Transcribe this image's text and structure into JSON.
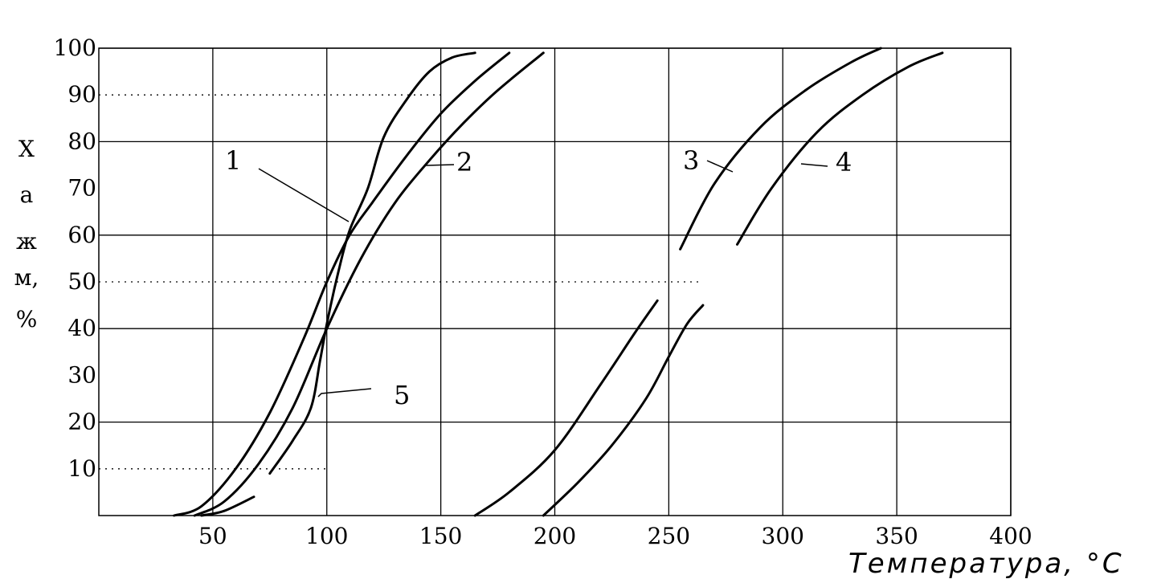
{
  "chart_data": {
    "type": "line",
    "title": "",
    "xlabel": "Температура, °C",
    "ylabel": [
      "Х",
      "а",
      "ж",
      "м,",
      "%"
    ],
    "xlim": [
      0,
      400
    ],
    "ylim": [
      0,
      100
    ],
    "x_ticks": [
      50,
      100,
      150,
      200,
      250,
      300,
      350,
      400
    ],
    "y_ticks": [
      10,
      20,
      30,
      40,
      50,
      60,
      70,
      80,
      90,
      100
    ],
    "y_tick_labels": [
      "10",
      "20",
      "30",
      "40",
      "50",
      "60",
      "70",
      "80",
      "90",
      "100"
    ],
    "grid": true,
    "legend": "none",
    "series": [
      {
        "name": "1",
        "x": [
          33,
          45,
          60,
          75,
          90,
          100,
          110,
          120,
          135,
          150,
          165,
          180
        ],
        "y": [
          0,
          2,
          10,
          22,
          38,
          50,
          60,
          67,
          77,
          86,
          93,
          99
        ]
      },
      {
        "name": "2",
        "x": [
          42,
          55,
          70,
          85,
          100,
          115,
          130,
          145,
          160,
          175,
          195
        ],
        "y": [
          0,
          3,
          11,
          23,
          40,
          55,
          67,
          76,
          84,
          91,
          99
        ]
      },
      {
        "name": "3",
        "x": [
          165,
          180,
          200,
          220,
          235,
          245
        ],
        "y": [
          0,
          5,
          14,
          28,
          39,
          46
        ]
      },
      {
        "name": "3",
        "x": [
          255,
          270,
          290,
          310,
          330,
          343
        ],
        "y": [
          57,
          71,
          83,
          91,
          97,
          100
        ]
      },
      {
        "name": "4",
        "x": [
          195,
          210,
          225,
          240,
          250,
          258,
          265
        ],
        "y": [
          0,
          7,
          15,
          25,
          34,
          41,
          45
        ]
      },
      {
        "name": "4",
        "x": [
          280,
          295,
          315,
          335,
          355,
          370
        ],
        "y": [
          58,
          70,
          82,
          90,
          96,
          99
        ]
      },
      {
        "name": "5",
        "x": [
          45,
          55,
          68
        ],
        "y": [
          0,
          1,
          4
        ]
      },
      {
        "name": "5",
        "x": [
          75,
          85,
          93,
          97,
          100,
          105,
          110,
          118,
          125,
          135,
          145,
          155,
          165
        ],
        "y": [
          9,
          16,
          23,
          33,
          41,
          52,
          61,
          70,
          81,
          89,
          95,
          98,
          99
        ]
      }
    ],
    "curve_labels": [
      "1",
      "2",
      "3",
      "4",
      "5"
    ]
  }
}
